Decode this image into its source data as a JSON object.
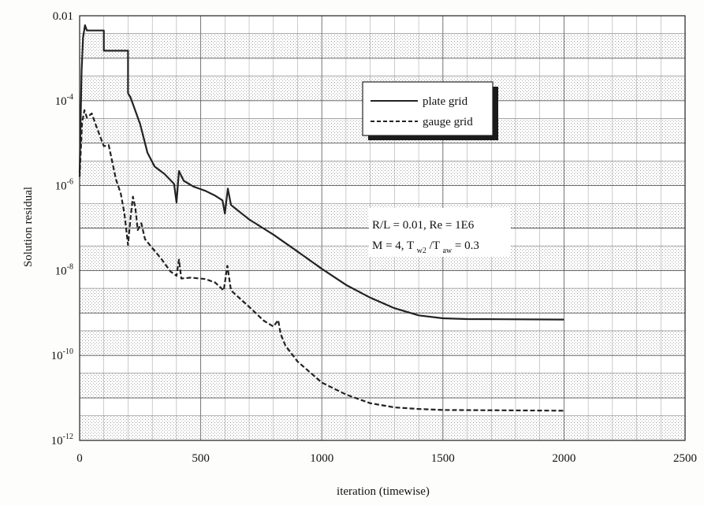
{
  "chart_data": {
    "type": "line",
    "xlabel": "iteration (timewise)",
    "ylabel": "Solution residual",
    "xlim": [
      0,
      2500
    ],
    "ylim": [
      1e-12,
      0.01
    ],
    "yscale": "log",
    "grid": true,
    "legend_position": "top-right",
    "x_ticks": [
      {
        "value": 0,
        "label": "0"
      },
      {
        "value": 500,
        "label": "500"
      },
      {
        "value": 1000,
        "label": "1000"
      },
      {
        "value": 1500,
        "label": "1500"
      },
      {
        "value": 2000,
        "label": "2000"
      },
      {
        "value": 2500,
        "label": "2500"
      }
    ],
    "y_ticks": [
      {
        "value": 0.01,
        "label": "0.01",
        "base": "",
        "exp": ""
      },
      {
        "value": 0.0001,
        "label": "",
        "base": "10",
        "exp": "-4"
      },
      {
        "value": 1e-06,
        "label": "",
        "base": "10",
        "exp": "-6"
      },
      {
        "value": 1e-08,
        "label": "",
        "base": "10",
        "exp": "-8"
      },
      {
        "value": 1e-10,
        "label": "",
        "base": "10",
        "exp": "-10"
      },
      {
        "value": 1e-12,
        "label": "",
        "base": "10",
        "exp": "-12"
      }
    ],
    "annotation": {
      "line1": "R/L = 0.01, Re = 1E6",
      "line2_prefix": "M = 4, T",
      "line2_sub1": "w2",
      "line2_mid": "/T",
      "line2_sub2": "aw",
      "line2_suffix": " = 0.3"
    },
    "series": [
      {
        "name": "plate grid",
        "style": "solid",
        "color": "#222222",
        "points": [
          [
            0,
            2e-06
          ],
          [
            8,
            0.0005
          ],
          [
            14,
            0.003
          ],
          [
            22,
            0.006
          ],
          [
            30,
            0.0045
          ],
          [
            100,
            0.0045
          ],
          [
            100,
            0.0015
          ],
          [
            200,
            0.0015
          ],
          [
            200,
            0.00015
          ],
          [
            210,
            0.00012
          ],
          [
            250,
            2.8e-05
          ],
          [
            280,
            6e-06
          ],
          [
            310,
            2.8e-06
          ],
          [
            350,
            1.9e-06
          ],
          [
            390,
            1.1e-06
          ],
          [
            400,
            4e-07
          ],
          [
            410,
            2.2e-06
          ],
          [
            430,
            1.3e-06
          ],
          [
            470,
            9.5e-07
          ],
          [
            520,
            7.5e-07
          ],
          [
            560,
            5.8e-07
          ],
          [
            590,
            4.5e-07
          ],
          [
            600,
            2.2e-07
          ],
          [
            612,
            8.5e-07
          ],
          [
            625,
            3.5e-07
          ],
          [
            700,
            1.6e-07
          ],
          [
            800,
            7e-08
          ],
          [
            900,
            2.8e-08
          ],
          [
            1000,
            1.1e-08
          ],
          [
            1100,
            4.6e-09
          ],
          [
            1200,
            2.3e-09
          ],
          [
            1300,
            1.3e-09
          ],
          [
            1400,
            8.8e-10
          ],
          [
            1500,
            7.5e-10
          ],
          [
            1600,
            7.2e-10
          ],
          [
            2000,
            7e-10
          ]
        ]
      },
      {
        "name": "gauge grid",
        "style": "dashed",
        "color": "#222222",
        "points": [
          [
            0,
            1.6e-06
          ],
          [
            6,
            9e-06
          ],
          [
            10,
            3e-05
          ],
          [
            20,
            6e-05
          ],
          [
            30,
            4e-05
          ],
          [
            50,
            5e-05
          ],
          [
            70,
            2.4e-05
          ],
          [
            90,
            1.2e-05
          ],
          [
            100,
            8.5e-06
          ],
          [
            120,
            9e-06
          ],
          [
            150,
            1.4e-06
          ],
          [
            170,
            6.5e-07
          ],
          [
            185,
            2.2e-07
          ],
          [
            200,
            4e-08
          ],
          [
            210,
            1.7e-07
          ],
          [
            220,
            5.5e-07
          ],
          [
            230,
            3e-07
          ],
          [
            240,
            9e-08
          ],
          [
            255,
            1.3e-07
          ],
          [
            270,
            5.5e-08
          ],
          [
            300,
            3.4e-08
          ],
          [
            340,
            1.8e-08
          ],
          [
            375,
            9.5e-09
          ],
          [
            400,
            7.5e-09
          ],
          [
            410,
            1.8e-08
          ],
          [
            420,
            6.5e-09
          ],
          [
            460,
            6.8e-09
          ],
          [
            520,
            6.3e-09
          ],
          [
            560,
            5.2e-09
          ],
          [
            595,
            3.4e-09
          ],
          [
            610,
            1.3e-08
          ],
          [
            625,
            3.4e-09
          ],
          [
            700,
            1.4e-09
          ],
          [
            760,
            6.6e-10
          ],
          [
            800,
            4.8e-10
          ],
          [
            820,
            6.8e-10
          ],
          [
            830,
            3.2e-10
          ],
          [
            850,
            1.7e-10
          ],
          [
            900,
            7.2e-11
          ],
          [
            1000,
            2.3e-11
          ],
          [
            1100,
            1.2e-11
          ],
          [
            1200,
            7.5e-12
          ],
          [
            1300,
            6e-12
          ],
          [
            1400,
            5.5e-12
          ],
          [
            1500,
            5.2e-12
          ],
          [
            2000,
            5e-12
          ]
        ]
      }
    ]
  }
}
